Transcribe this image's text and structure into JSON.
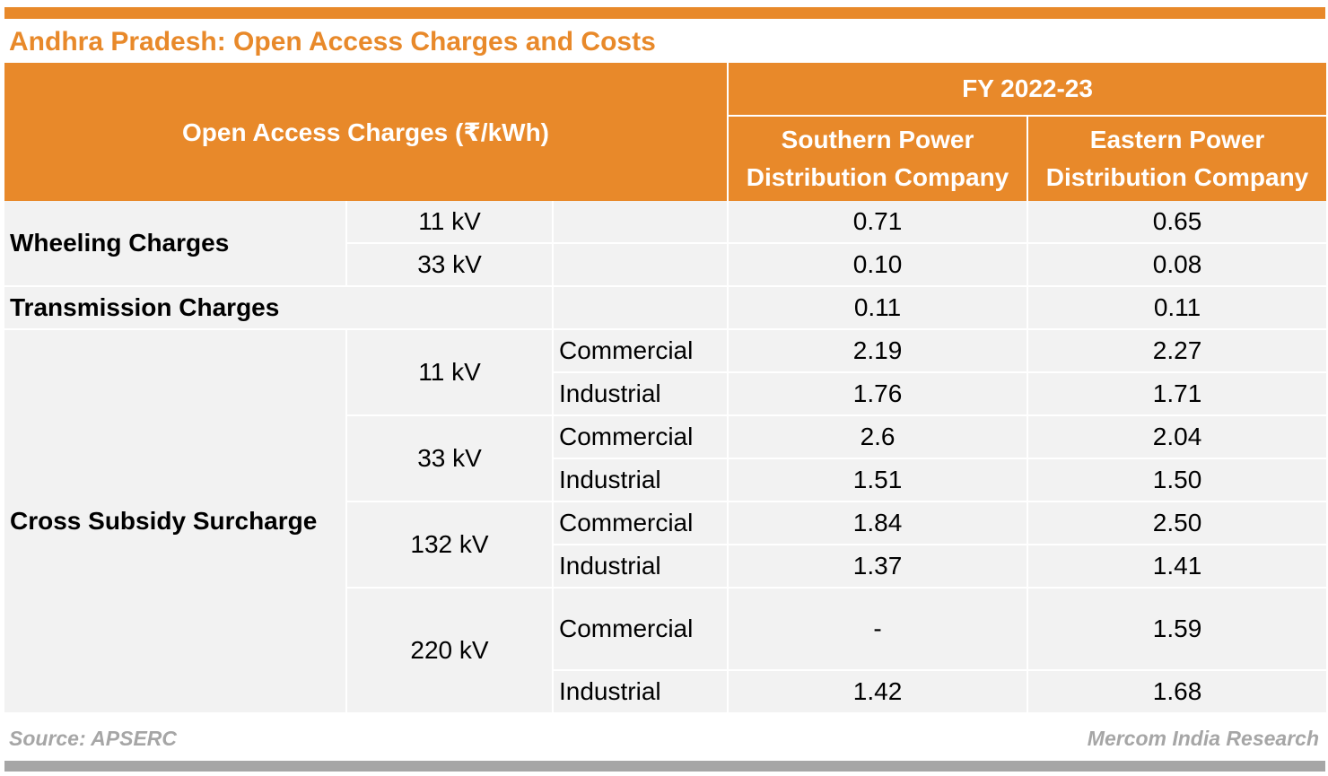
{
  "title": "Andhra Pradesh: Open Access Charges and Costs",
  "table": {
    "row_header": "Open Access Charges (₹/kWh)",
    "period": "FY 2022-23",
    "columns": [
      "Southern Power Distribution Company",
      "Eastern Power Distribution Company"
    ],
    "wheeling": {
      "label": "Wheeling Charges",
      "rows": [
        {
          "voltage": "11 kV",
          "southern": "0.71",
          "eastern": "0.65"
        },
        {
          "voltage": "33 kV",
          "southern": "0.10",
          "eastern": "0.08"
        }
      ]
    },
    "transmission": {
      "label": "Transmission Charges",
      "southern": "0.11",
      "eastern": "0.11"
    },
    "cross_subsidy": {
      "label": "Cross Subsidy Surcharge",
      "groups": [
        {
          "voltage": "11 kV",
          "rows": [
            {
              "consumer": "Commercial",
              "southern": "2.19",
              "eastern": "2.27"
            },
            {
              "consumer": "Industrial",
              "southern": "1.76",
              "eastern": "1.71"
            }
          ]
        },
        {
          "voltage": "33 kV",
          "rows": [
            {
              "consumer": "Commercial",
              "southern": "2.6",
              "eastern": "2.04"
            },
            {
              "consumer": "Industrial",
              "southern": "1.51",
              "eastern": "1.50"
            }
          ]
        },
        {
          "voltage": "132 kV",
          "rows": [
            {
              "consumer": "Commercial",
              "southern": "1.84",
              "eastern": "2.50"
            },
            {
              "consumer": "Industrial",
              "southern": "1.37",
              "eastern": "1.41"
            }
          ]
        },
        {
          "voltage": "220 kV",
          "rows": [
            {
              "consumer": "Commercial",
              "southern": "-",
              "eastern": "1.59"
            },
            {
              "consumer": "Industrial",
              "southern": "1.42",
              "eastern": "1.68"
            }
          ]
        }
      ]
    }
  },
  "source": "Source: APSERC",
  "credit": "Mercom India Research",
  "colors": {
    "accent": "#e8892a",
    "row_bg": "#f2f2f2",
    "footer_text": "#a6a6a6"
  }
}
